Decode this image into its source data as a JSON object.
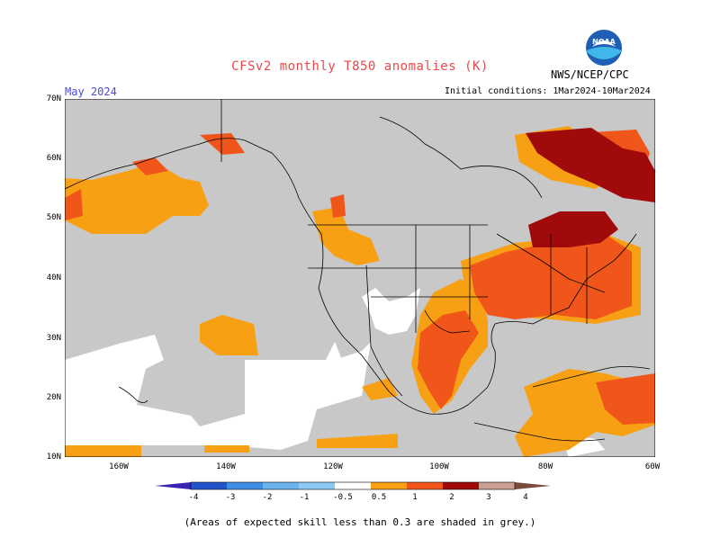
{
  "header": {
    "title": "CFSv2 monthly T850 anomalies (K)",
    "agency": "NWS/NCEP/CPC",
    "logo_text": "NOAA",
    "month": "May 2024",
    "initial_conditions": "Initial conditions: 1Mar2024-10Mar2024"
  },
  "map": {
    "lat_labels": [
      "70N",
      "60N",
      "50N",
      "40N",
      "30N",
      "20N",
      "10N"
    ],
    "lon_labels": [
      "160W",
      "140W",
      "120W",
      "100W",
      "80W",
      "60W"
    ],
    "skill_mask_color": "#c8c8c8",
    "land_outline_color": "#000000"
  },
  "colorbar": {
    "labels": [
      "-4",
      "-3",
      "-2",
      "-1",
      "-0.5",
      "0.5",
      "1",
      "2",
      "3",
      "4"
    ],
    "colors": [
      "#3a23b0",
      "#2255cc",
      "#3f8ee6",
      "#6ab4f0",
      "#ffffff",
      "#f7a014",
      "#f0561a",
      "#e8231a",
      "#a00a0a",
      "#c9a093",
      "#7a4a3a"
    ]
  },
  "footnote": "(Areas of expected skill less than 0.3 are shaded in grey.)"
}
